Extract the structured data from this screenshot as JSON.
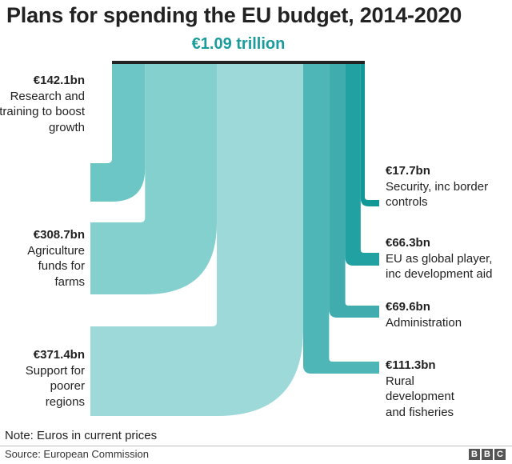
{
  "title": "Plans for spending the EU budget, 2014-2020",
  "total_label": "€1.09 trillion",
  "note": "Note: Euros in current prices",
  "source": "Source: European Commission",
  "logo": [
    "B",
    "B",
    "C"
  ],
  "colors": {
    "research": "#6cc6c5",
    "agriculture": "#84d0ce",
    "poorer": "#9cd9d8",
    "rural": "#4fb6b8",
    "admin": "#40acad",
    "global": "#22a1a2",
    "security": "#0f9896",
    "accent": "#1a9c9c",
    "bar": "#222222"
  },
  "chart_data": {
    "type": "sankey",
    "title": "Plans for spending the EU budget, 2014-2020",
    "total": "€1.09 trillion",
    "unit": "€bn",
    "flows": [
      {
        "value_label": "€142.1bn",
        "value": 142.1,
        "label": "Research and training to boost growth",
        "side": "left"
      },
      {
        "value_label": "€308.7bn",
        "value": 308.7,
        "label": "Agriculture funds for farms",
        "side": "left"
      },
      {
        "value_label": "€371.4bn",
        "value": 371.4,
        "label": "Support for poorer regions",
        "side": "left"
      },
      {
        "value_label": "€111.3bn",
        "value": 111.3,
        "label": "Rural development and fisheries",
        "side": "right"
      },
      {
        "value_label": "€69.6bn",
        "value": 69.6,
        "label": "Administration",
        "side": "right"
      },
      {
        "value_label": "€66.3bn",
        "value": 66.3,
        "label": "EU as global player, inc development aid",
        "side": "right"
      },
      {
        "value_label": "€17.7bn",
        "value": 17.7,
        "label": "Security, inc border controls",
        "side": "right"
      }
    ]
  }
}
